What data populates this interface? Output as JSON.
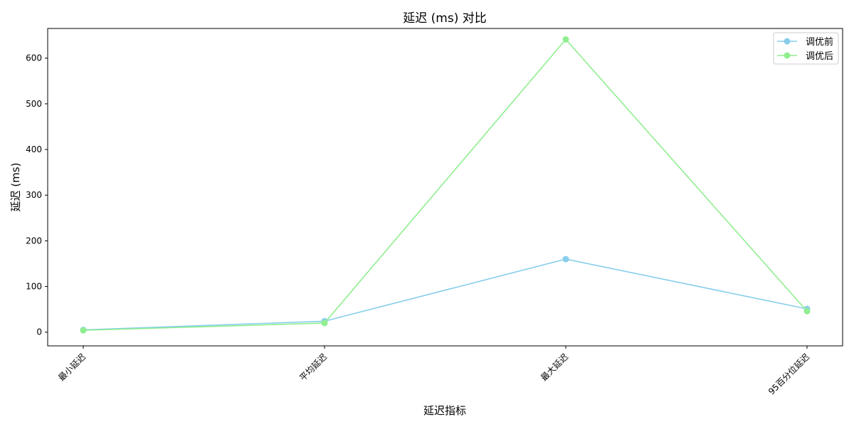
{
  "chart_data": {
    "type": "line",
    "title": "延迟 (ms) 对比",
    "xlabel": "延迟指标",
    "ylabel": "延迟 (ms)",
    "categories": [
      "最小延迟",
      "平均延迟",
      "最大延迟",
      "95百分位延迟"
    ],
    "ylim": [
      -30,
      665
    ],
    "yticks": [
      0,
      100,
      200,
      300,
      400,
      500,
      600
    ],
    "grid": false,
    "legend_position": "top-right",
    "series": [
      {
        "name": "调优前",
        "color": "#87CEEB",
        "values": [
          5,
          24,
          160,
          51
        ]
      },
      {
        "name": "调优后",
        "color": "#90EE90",
        "values": [
          4,
          20,
          641,
          46
        ]
      }
    ]
  }
}
